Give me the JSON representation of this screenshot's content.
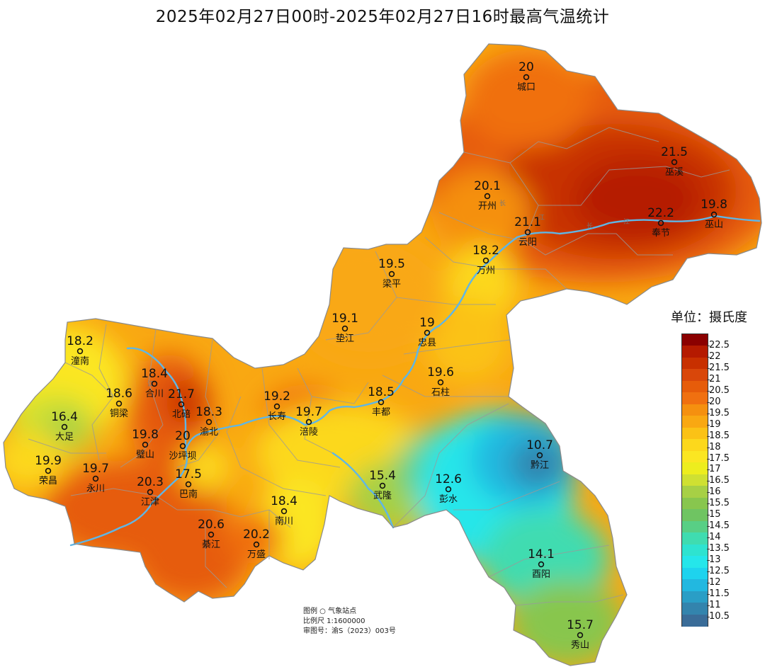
{
  "title": "2025年02月27日00时-2025年02月27日16时最高气温统计",
  "legend": {
    "unit_label": "单位：摄氏度",
    "ticks": [
      "22.5",
      "22",
      "21.5",
      "21",
      "20.5",
      "20",
      "19.5",
      "19",
      "18.5",
      "18",
      "17.5",
      "17",
      "16.5",
      "16",
      "15.5",
      "15",
      "14.5",
      "14",
      "13.5",
      "13",
      "12.5",
      "12",
      "11.5",
      "11",
      "10.5"
    ],
    "colors": [
      "#8b0000",
      "#b51a00",
      "#c83000",
      "#d9470a",
      "#e65c0a",
      "#f07010",
      "#f5900f",
      "#f9a812",
      "#fbc216",
      "#fcd81c",
      "#fbe622",
      "#eded1e",
      "#cfe032",
      "#a7d045",
      "#88c64e",
      "#6fc462",
      "#58cf85",
      "#3fdcb0",
      "#2ee3d0",
      "#25e6ea",
      "#1ed3ee",
      "#22b8e0",
      "#2a9ec6",
      "#3384ad",
      "#3a6c98"
    ],
    "icon": "station-circle-icon"
  },
  "footer": {
    "legend_line": "图例  ○  气象站点",
    "scale_line": "比例尺  1:1600000",
    "approval_line": "审图号：渝S（2023）003号"
  },
  "rivers": [
    "长",
    "江",
    "长",
    "江",
    "江"
  ],
  "stations": [
    {
      "name": "城口",
      "value": "20"
    },
    {
      "name": "巫溪",
      "value": "21.5"
    },
    {
      "name": "开州",
      "value": "20.1"
    },
    {
      "name": "奉节",
      "value": "22.2"
    },
    {
      "name": "巫山",
      "value": "19.8"
    },
    {
      "name": "云阳",
      "value": "21.1"
    },
    {
      "name": "万州",
      "value": "18.2"
    },
    {
      "name": "梁平",
      "value": "19.5"
    },
    {
      "name": "垫江",
      "value": "19.1"
    },
    {
      "name": "忠县",
      "value": "19"
    },
    {
      "name": "石柱",
      "value": "19.6"
    },
    {
      "name": "潼南",
      "value": "18.2"
    },
    {
      "name": "合川",
      "value": "18.4"
    },
    {
      "name": "铜梁",
      "value": "18.6"
    },
    {
      "name": "北碚",
      "value": "21.7"
    },
    {
      "name": "大足",
      "value": "16.4"
    },
    {
      "name": "渝北",
      "value": "18.3"
    },
    {
      "name": "长寿",
      "value": "19.2"
    },
    {
      "name": "涪陵",
      "value": "19.7"
    },
    {
      "name": "丰都",
      "value": "18.5"
    },
    {
      "name": "璧山",
      "value": "19.8"
    },
    {
      "name": "沙坪坝",
      "value": "20"
    },
    {
      "name": "荣昌",
      "value": "19.9"
    },
    {
      "name": "永川",
      "value": "19.7"
    },
    {
      "name": "巴南",
      "value": "17.5"
    },
    {
      "name": "江津",
      "value": "20.3"
    },
    {
      "name": "武隆",
      "value": "15.4"
    },
    {
      "name": "彭水",
      "value": "12.6"
    },
    {
      "name": "黔江",
      "value": "10.7"
    },
    {
      "name": "南川",
      "value": "18.4"
    },
    {
      "name": "綦江",
      "value": "20.6"
    },
    {
      "name": "万盛",
      "value": "20.2"
    },
    {
      "name": "酉阳",
      "value": "14.1"
    },
    {
      "name": "秀山",
      "value": "15.7"
    }
  ]
}
